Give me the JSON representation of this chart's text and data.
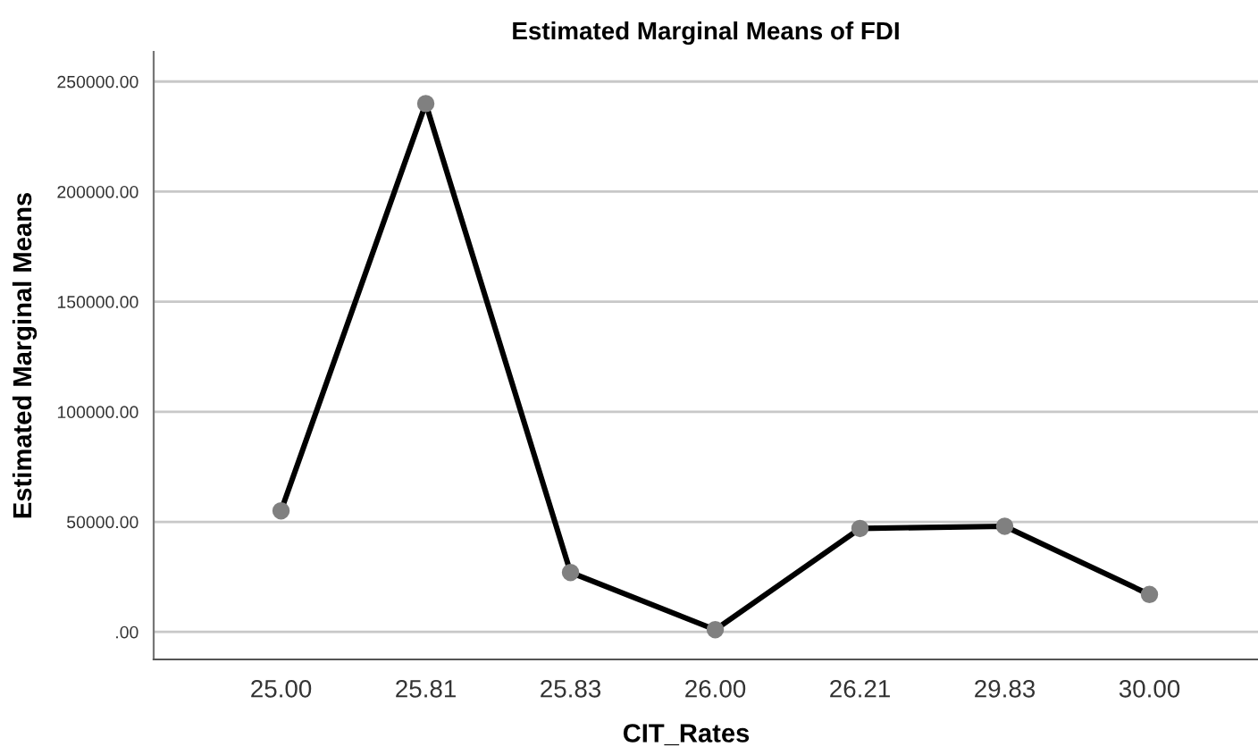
{
  "chart_data": {
    "type": "line",
    "title": "Estimated Marginal Means of FDI",
    "xlabel": "CIT_Rates",
    "ylabel": "Estimated Marginal Means",
    "categories": [
      "25.00",
      "25.81",
      "25.83",
      "26.00",
      "26.21",
      "29.83",
      "30.00"
    ],
    "series": [
      {
        "color": "#000000",
        "values": [
          55000,
          240000,
          27000,
          1000,
          47000,
          48000,
          17000
        ]
      }
    ],
    "ylim": [
      -12500,
      263500
    ],
    "yticks": [
      {
        "value": 0,
        "label": ".00"
      },
      {
        "value": 50000,
        "label": "50000.00"
      },
      {
        "value": 100000,
        "label": "100000.00"
      },
      {
        "value": 150000,
        "label": "150000.00"
      },
      {
        "value": 200000,
        "label": "200000.00"
      },
      {
        "value": 250000,
        "label": "250000.00"
      }
    ],
    "grid": "y",
    "marker": "circle",
    "line_style": "solid",
    "legend": false
  }
}
